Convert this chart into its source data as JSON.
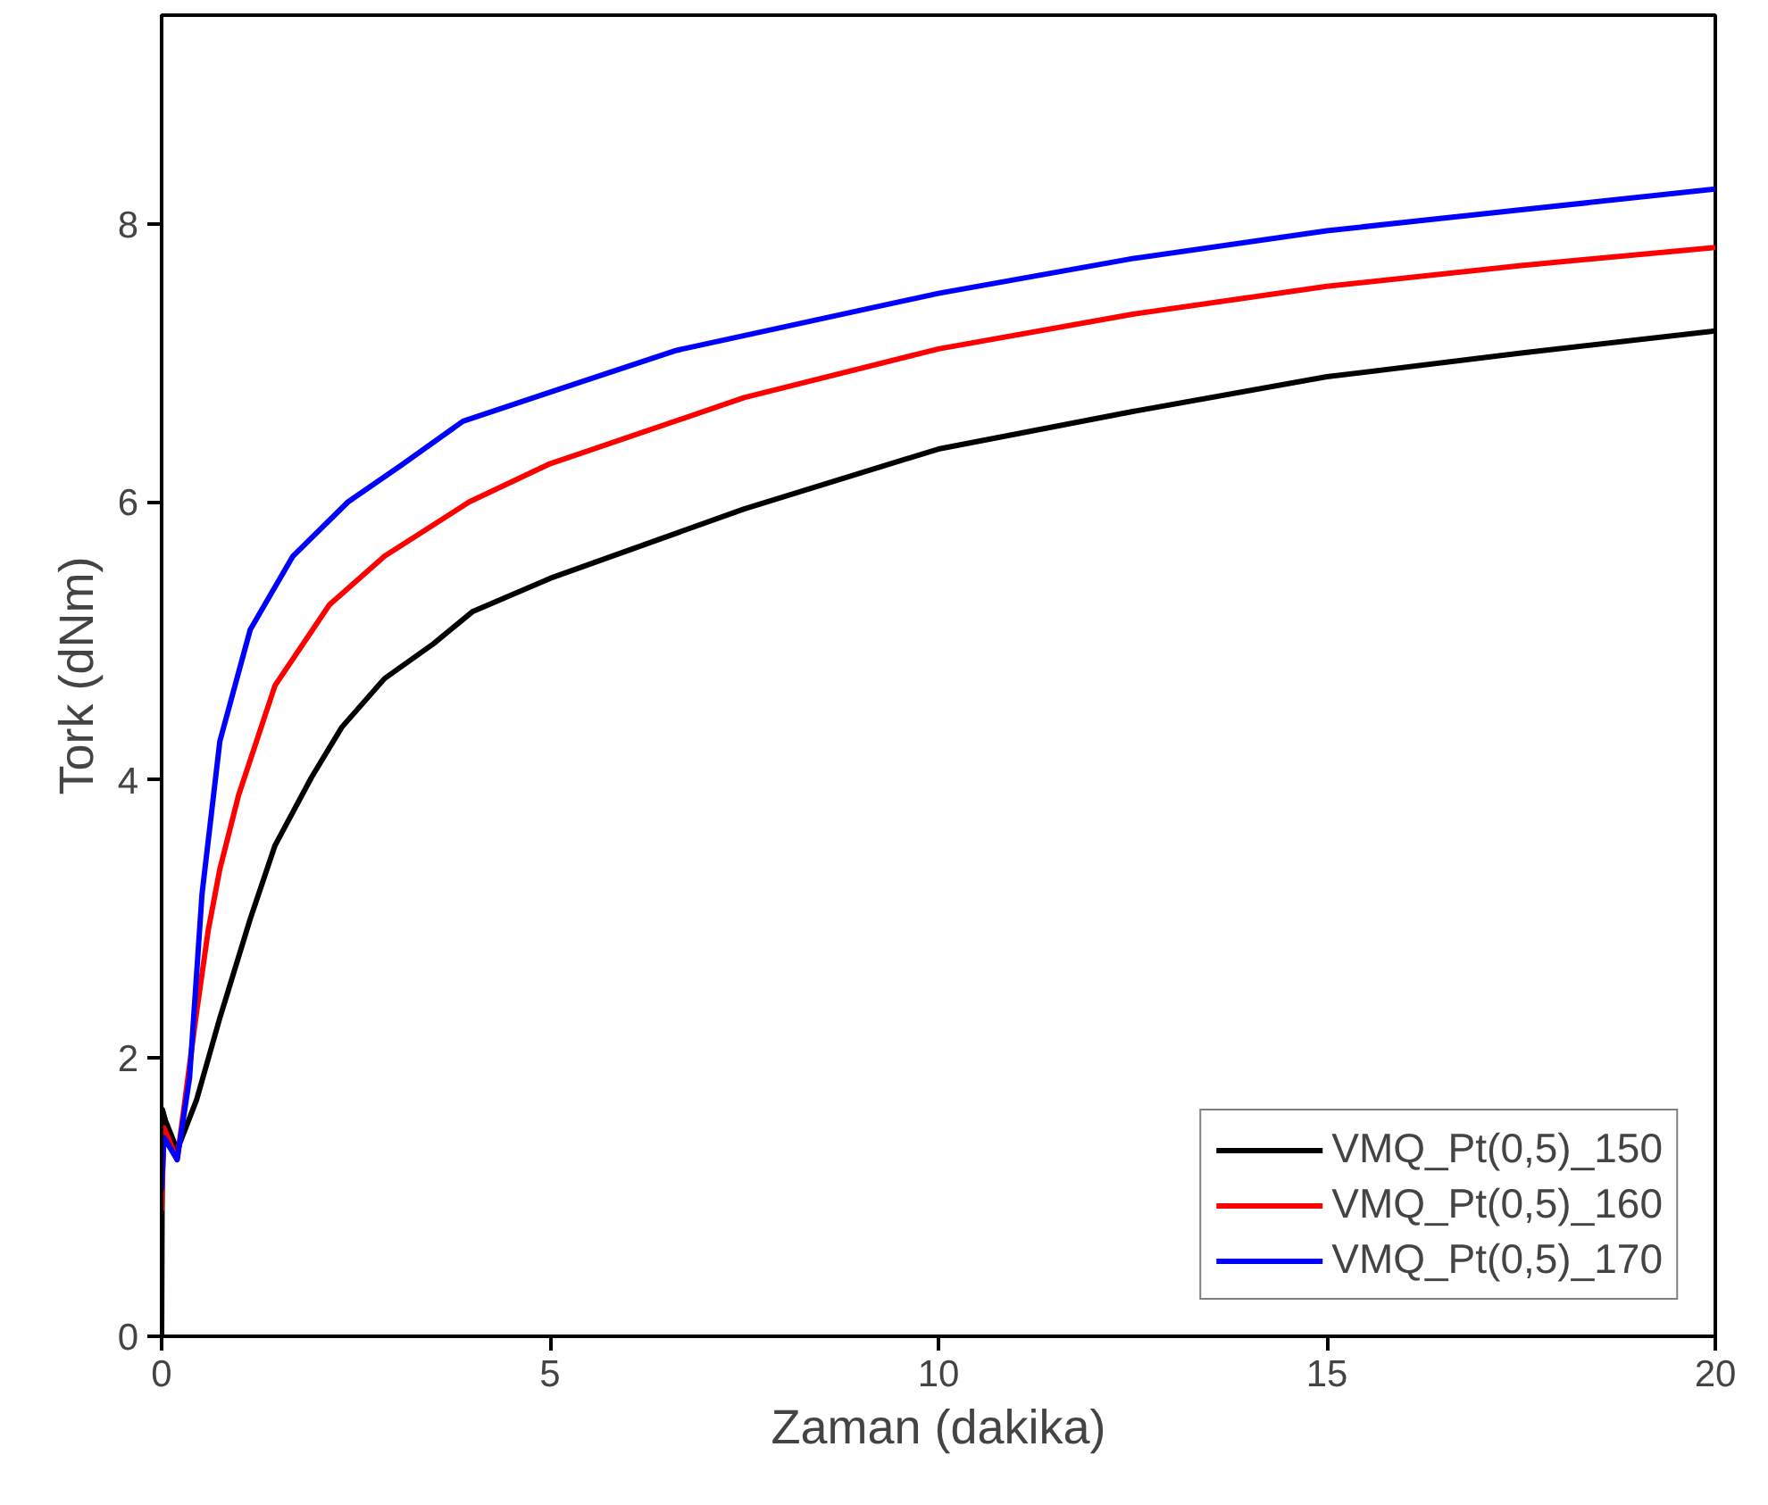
{
  "chart_data": {
    "type": "line",
    "xlabel": "Zaman (dakika)",
    "ylabel": "Tork (dNm)",
    "xlim": [
      0,
      20
    ],
    "ylim": [
      0,
      9.5
    ],
    "xticks": [
      0,
      5,
      10,
      15,
      20
    ],
    "yticks": [
      0,
      2,
      4,
      6,
      8
    ],
    "grid": false,
    "legend": "bottom right",
    "line_style": "solid",
    "marker": "none",
    "series": [
      {
        "name": "VMQ_Pt(0,5)_150",
        "color": "#000000",
        "x": [
          0,
          0.01,
          0.05,
          0.2,
          0.45,
          0.75,
          1.14,
          1.46,
          1.93,
          2.32,
          2.87,
          3.5,
          4.0,
          5.0,
          7.5,
          10,
          12.5,
          15,
          17.5,
          20
        ],
        "values": [
          0,
          1.63,
          1.55,
          1.34,
          1.7,
          2.29,
          3.0,
          3.53,
          4.02,
          4.38,
          4.73,
          4.98,
          5.21,
          5.45,
          5.95,
          6.38,
          6.65,
          6.9,
          7.07,
          7.23
        ]
      },
      {
        "name": "VMQ_Pt(0,5)_160",
        "color": "#ff0000",
        "x": [
          0,
          0.03,
          0.2,
          0.44,
          0.6,
          0.75,
          0.99,
          1.46,
          2.16,
          2.87,
          3.96,
          4.98,
          7.5,
          10,
          12.5,
          15,
          17.5,
          20
        ],
        "values": [
          0.9,
          1.5,
          1.27,
          2.29,
          2.92,
          3.36,
          3.89,
          4.68,
          5.26,
          5.61,
          6.0,
          6.27,
          6.75,
          7.1,
          7.35,
          7.55,
          7.7,
          7.83
        ]
      },
      {
        "name": "VMQ_Pt(0,5)_170",
        "color": "#0000ff",
        "x": [
          0,
          0.03,
          0.2,
          0.36,
          0.52,
          0.75,
          1.14,
          1.69,
          2.4,
          3.1,
          3.88,
          5.06,
          6.63,
          10,
          12.5,
          15,
          17.5,
          20
        ],
        "values": [
          1.05,
          1.43,
          1.27,
          1.86,
          3.18,
          4.28,
          5.08,
          5.61,
          6.0,
          6.27,
          6.58,
          6.8,
          7.09,
          7.5,
          7.75,
          7.95,
          8.1,
          8.25
        ]
      }
    ]
  }
}
